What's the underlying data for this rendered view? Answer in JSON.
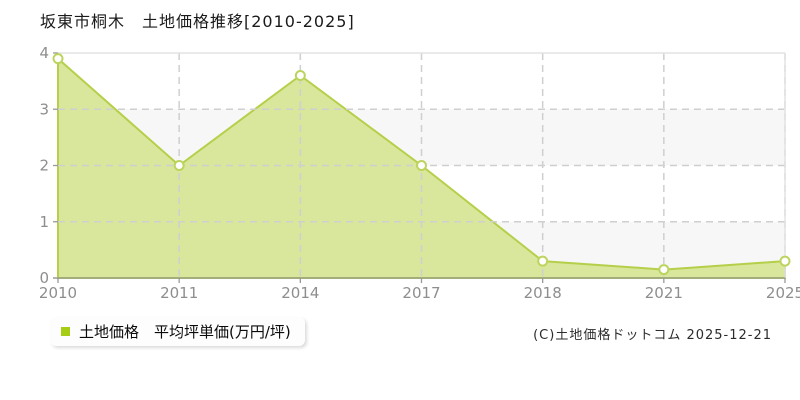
{
  "title": "坂東市桐木　土地価格推移[2010-2025]",
  "legend": {
    "label": "土地価格　平均坪単価(万円/坪)"
  },
  "footer": {
    "copyright": "(C)土地価格ドットコム 2025-12-21"
  },
  "colors": {
    "area_fill": "#d9e79c",
    "line": "#b5cf4a",
    "marker_fill": "#ffffff",
    "marker_stroke": "#bcd45e",
    "legend_swatch": "#a6cc14",
    "grid": "#cfcfcf",
    "band": "#f7f7f7",
    "border": "#e3e3e3",
    "axis": "#999999",
    "tick_label": "#8e8e8e"
  },
  "chart_data": {
    "type": "area",
    "categories": [
      "2010",
      "2011",
      "2014",
      "2017",
      "2018",
      "2021",
      "2025"
    ],
    "series": [
      {
        "name": "土地価格",
        "values": [
          3.9,
          2.0,
          3.6,
          2.0,
          0.3,
          0.15,
          0.3
        ]
      }
    ],
    "title": "坂東市桐木 土地価格推移[2010-2025]",
    "xlabel": "",
    "ylabel": "平均坪単価(万円/坪)",
    "ylim": [
      0,
      4
    ],
    "yticks": [
      0,
      1,
      2,
      3,
      4
    ],
    "grid": true,
    "grid_style": "dashed",
    "background_bands": "alternating",
    "legend_position": "bottom-left"
  }
}
